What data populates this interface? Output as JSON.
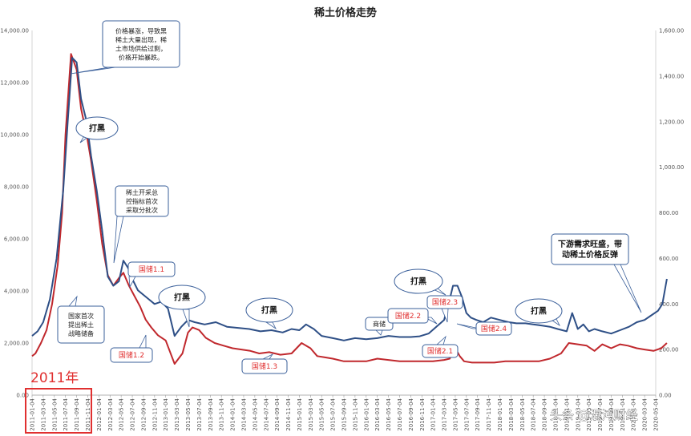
{
  "chart_data": {
    "type": "line",
    "title": "稀土价格走势",
    "left_axis": {
      "ylim": [
        0,
        14000
      ],
      "ticks": [
        "0.00",
        "2,000.00",
        "4,000.00",
        "6,000.00",
        "8,000.00",
        "10,000.00",
        "12,000.00",
        "14,000.00"
      ]
    },
    "right_axis": {
      "ylim": [
        0,
        1600
      ],
      "ticks": [
        "0.00",
        "200.00",
        "400.00",
        "600.00",
        "800.00",
        "1,000.00",
        "1,200.00",
        "1,400.00",
        "1,600.00"
      ]
    },
    "x_ticks": [
      "2011-01-04",
      "2011-03-04",
      "2011-05-04",
      "2011-07-04",
      "2011-09-04",
      "2011-11-04",
      "2012-01-04",
      "2012-03-04",
      "2012-05-04",
      "2012-07-04",
      "2012-09-04",
      "2012-11-04",
      "2013-01-04",
      "2013-03-04",
      "2013-05-04",
      "2013-07-04",
      "2013-09-04",
      "2013-11-04",
      "2014-01-04",
      "2014-03-04",
      "2014-05-04",
      "2014-07-04",
      "2014-09-04",
      "2014-11-04",
      "2015-01-04",
      "2015-03-04",
      "2015-05-04",
      "2015-07-04",
      "2015-09-04",
      "2015-11-04",
      "2016-01-04",
      "2016-03-04",
      "2016-05-04",
      "2016-07-04",
      "2016-09-04",
      "2016-11-04",
      "2017-01-04",
      "2017-03-04",
      "2017-05-04",
      "2017-07-04",
      "2017-09-04",
      "2017-11-04",
      "2018-01-04",
      "2018-03-04",
      "2018-05-04",
      "2018-07-04",
      "2018-09-04",
      "2018-11-04",
      "2019-01-04",
      "2019-03-04",
      "2019-05-04",
      "2019-07-04",
      "2019-09-04",
      "2019-11-04",
      "2020-01-04",
      "2020-03-04",
      "2020-05-04"
    ],
    "series": [
      {
        "axis": "left",
        "color": "#c0282d",
        "x": [
          0,
          0.3,
          0.8,
          1.3,
          1.8,
          2.3,
          2.7,
          3.0,
          3.5,
          4.0,
          4.4,
          4.9,
          5.3,
          5.8,
          6.3,
          6.8,
          7.3,
          7.8,
          8.2,
          8.7,
          9.2,
          9.7,
          10.2,
          10.7,
          11.3,
          12.0,
          12.8,
          13.5,
          14.0,
          14.4,
          15.0,
          15.6,
          16.4,
          17.2,
          18.0,
          18.8,
          19.6,
          20.4,
          21.3,
          22.3,
          23.3,
          24.2,
          25.0,
          25.6,
          26.3,
          27.0,
          28.0,
          29.0,
          30.0,
          31.0,
          32.0,
          33.0,
          34.0,
          35.0,
          36.0,
          37.0,
          37.5,
          38.0,
          38.4,
          38.8,
          39.5,
          40.5,
          41.5,
          42.5,
          43.5,
          44.5,
          45.5,
          46.5,
          47.5,
          48.2,
          49.0,
          49.8,
          50.5,
          51.2,
          52.0,
          52.8,
          53.5,
          54.3,
          55.0,
          55.8,
          56.5,
          57.0
        ],
        "y": [
          1500,
          1600,
          2000,
          2500,
          3500,
          5000,
          7000,
          10000,
          13100,
          12500,
          11000,
          10000,
          9000,
          7500,
          5800,
          4600,
          4200,
          4500,
          4700,
          4200,
          3800,
          3400,
          2900,
          2600,
          2300,
          2100,
          1200,
          1600,
          2400,
          2600,
          2500,
          2200,
          2000,
          1900,
          1800,
          1750,
          1700,
          1600,
          1650,
          1550,
          1600,
          2000,
          1800,
          1500,
          1450,
          1400,
          1300,
          1300,
          1300,
          1400,
          1350,
          1300,
          1300,
          1300,
          1300,
          1350,
          1400,
          1800,
          1500,
          1300,
          1250,
          1250,
          1250,
          1300,
          1300,
          1300,
          1300,
          1400,
          1600,
          2000,
          1950,
          1900,
          1700,
          1950,
          1800,
          1950,
          1900,
          1800,
          1750,
          1700,
          1800,
          2000
        ]
      },
      {
        "axis": "right",
        "color": "#2e4f86",
        "x": [
          0,
          0.5,
          1.0,
          1.6,
          2.2,
          2.8,
          3.2,
          3.6,
          4.0,
          4.4,
          4.9,
          5.3,
          5.8,
          6.3,
          6.8,
          7.3,
          7.8,
          8.2,
          8.6,
          9.1,
          9.5,
          10.0,
          10.5,
          11.0,
          11.6,
          12.2,
          12.8,
          13.4,
          14.0,
          14.6,
          15.5,
          16.5,
          17.5,
          18.5,
          19.5,
          20.5,
          21.5,
          22.5,
          23.3,
          24.0,
          24.6,
          25.3,
          26.0,
          27.0,
          28.0,
          29.0,
          30.0,
          31.0,
          32.0,
          33.0,
          34.0,
          34.8,
          35.6,
          36.3,
          37.0,
          37.4,
          37.8,
          38.2,
          38.6,
          39.0,
          39.4,
          39.9,
          40.5,
          41.2,
          42.0,
          42.8,
          43.5,
          44.3,
          45.0,
          45.8,
          46.5,
          47.2,
          48.0,
          48.5,
          49.0,
          49.5,
          50.0,
          50.5,
          51.2,
          52.0,
          52.8,
          53.6,
          54.3,
          55.0,
          55.6,
          56.2,
          56.6,
          57.0
        ],
        "y": [
          260,
          280,
          320,
          420,
          600,
          900,
          1200,
          1480,
          1460,
          1300,
          1200,
          1050,
          900,
          720,
          520,
          480,
          500,
          590,
          560,
          500,
          460,
          440,
          420,
          400,
          410,
          380,
          260,
          300,
          330,
          320,
          310,
          320,
          300,
          295,
          290,
          280,
          285,
          275,
          290,
          285,
          310,
          290,
          260,
          250,
          240,
          250,
          245,
          250,
          260,
          255,
          255,
          258,
          270,
          300,
          330,
          400,
          480,
          480,
          430,
          360,
          340,
          330,
          320,
          340,
          330,
          320,
          315,
          315,
          310,
          305,
          300,
          290,
          280,
          360,
          290,
          310,
          280,
          290,
          280,
          270,
          285,
          300,
          320,
          330,
          350,
          370,
          400,
          510
        ]
      }
    ],
    "annotations": [
      {
        "text": [
          "价格暴涨，导致黑",
          "稀土大量出现，稀",
          "土市场供给过剩，",
          "价格开始暴跌。"
        ]
      },
      {
        "text": [
          "打黑"
        ]
      },
      {
        "text": [
          "稀土开采总",
          "控指标首次",
          "采取分批次"
        ]
      },
      {
        "text": [
          "国储1.1"
        ]
      },
      {
        "text": [
          "打黑"
        ]
      },
      {
        "text": [
          "国家首次",
          "提出稀土",
          "战略储备"
        ]
      },
      {
        "text": [
          "国储1.2"
        ]
      },
      {
        "text": [
          "打黑"
        ]
      },
      {
        "text": [
          "国储1.3"
        ]
      },
      {
        "text": [
          "商储"
        ]
      },
      {
        "text": [
          "国储2.2"
        ]
      },
      {
        "text": [
          "打黑"
        ]
      },
      {
        "text": [
          "国储2.3"
        ]
      },
      {
        "text": [
          "国储2.4"
        ]
      },
      {
        "text": [
          "国储2.1"
        ]
      },
      {
        "text": [
          "打黑"
        ]
      },
      {
        "text": [
          "下游需求旺盛，带",
          "动稀土价格反弹"
        ]
      }
    ],
    "year_label": "2011年",
    "watermark": "头条 @混沌财经",
    "colors": {
      "red_series": "#c0282d",
      "blue_series": "#2e4f86",
      "red_text": "#e03030",
      "box_stroke": "#3a5f9a"
    }
  }
}
